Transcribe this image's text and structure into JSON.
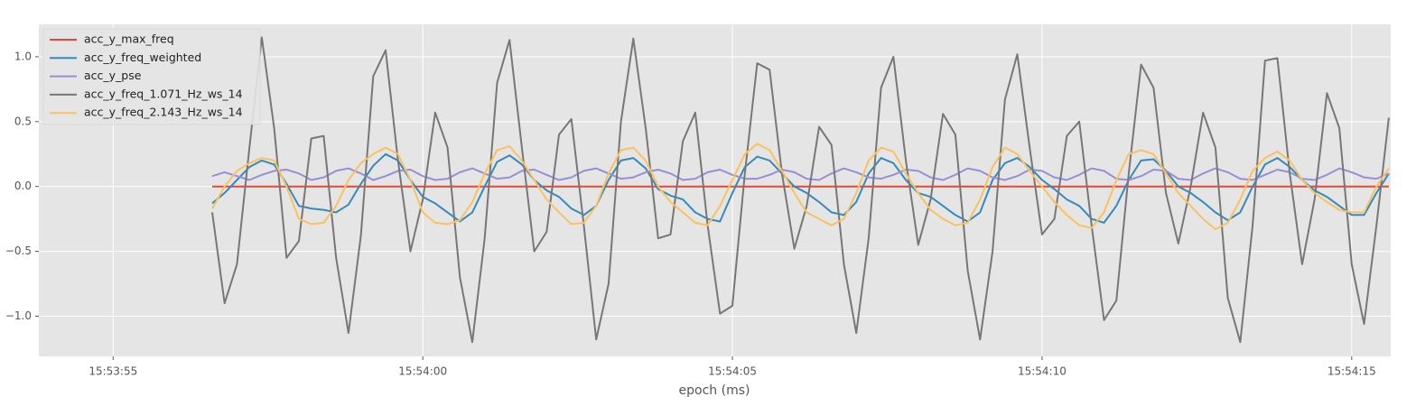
{
  "chart_data": {
    "type": "line",
    "xlabel": "epoch (ms)",
    "xlim": [
      -1.2,
      20.63
    ],
    "ylim": [
      -1.31,
      1.25
    ],
    "xticks": [
      {
        "value": 0,
        "label": "15:53:55"
      },
      {
        "value": 5,
        "label": "15:54:00"
      },
      {
        "value": 10,
        "label": "15:54:05"
      },
      {
        "value": 15,
        "label": "15:54:10"
      },
      {
        "value": 20,
        "label": "15:54:15"
      }
    ],
    "yticks": [
      {
        "value": -1.0,
        "label": "−1.0"
      },
      {
        "value": -0.5,
        "label": "−0.5"
      },
      {
        "value": 0.0,
        "label": "0.0"
      },
      {
        "value": 0.5,
        "label": "0.5"
      },
      {
        "value": 1.0,
        "label": "1.0"
      }
    ],
    "grid": true,
    "legend": "upper left",
    "x": [
      1.6,
      1.8,
      2.0,
      2.2,
      2.4,
      2.6,
      2.8,
      3.0,
      3.2,
      3.4,
      3.6,
      3.8,
      4.0,
      4.2,
      4.4,
      4.6,
      4.8,
      5.0,
      5.2,
      5.4,
      5.6,
      5.8,
      6.0,
      6.2,
      6.4,
      6.6,
      6.8,
      7.0,
      7.2,
      7.4,
      7.6,
      7.8,
      8.0,
      8.2,
      8.4,
      8.6,
      8.8,
      9.0,
      9.2,
      9.4,
      9.6,
      9.8,
      10.0,
      10.2,
      10.4,
      10.6,
      10.8,
      11.0,
      11.2,
      11.4,
      11.6,
      11.8,
      12.0,
      12.2,
      12.4,
      12.6,
      12.8,
      13.0,
      13.2,
      13.4,
      13.6,
      13.8,
      14.0,
      14.2,
      14.4,
      14.6,
      14.8,
      15.0,
      15.2,
      15.4,
      15.6,
      15.8,
      16.0,
      16.2,
      16.4,
      16.6,
      16.8,
      17.0,
      17.2,
      17.4,
      17.6,
      17.8,
      18.0,
      18.2,
      18.4,
      18.6,
      18.8,
      19.0,
      19.2,
      19.4,
      19.6,
      19.8,
      20.0,
      20.2,
      20.4,
      20.6
    ],
    "series": [
      {
        "name": "acc_y_max_freq",
        "color": "#e24a33",
        "values": [
          0,
          0,
          0,
          0,
          0,
          0,
          0,
          0,
          0,
          0,
          0,
          0,
          0,
          0,
          0,
          0,
          0,
          0,
          0,
          0,
          0,
          0,
          0,
          0,
          0,
          0,
          0,
          0,
          0,
          0,
          0,
          0,
          0,
          0,
          0,
          0,
          0,
          0,
          0,
          0,
          0,
          0,
          0,
          0,
          0,
          0,
          0,
          0,
          0,
          0,
          0,
          0,
          0,
          0,
          0,
          0,
          0,
          0,
          0,
          0,
          0,
          0,
          0,
          0,
          0,
          0,
          0,
          0,
          0,
          0,
          0,
          0,
          0,
          0,
          0,
          0,
          0,
          0,
          0,
          0,
          0,
          0,
          0,
          0,
          0,
          0,
          0,
          0,
          0,
          0,
          0,
          0,
          0,
          0,
          0,
          0
        ]
      },
      {
        "name": "acc_y_freq_weighted",
        "color": "#348abd",
        "values": [
          -0.13,
          -0.05,
          0.05,
          0.15,
          0.2,
          0.17,
          0.02,
          -0.15,
          -0.17,
          -0.18,
          -0.2,
          -0.14,
          0.02,
          0.16,
          0.25,
          0.2,
          0.05,
          -0.08,
          -0.13,
          -0.2,
          -0.27,
          -0.2,
          0.0,
          0.19,
          0.24,
          0.17,
          0.05,
          -0.03,
          -0.08,
          -0.17,
          -0.22,
          -0.15,
          0.05,
          0.2,
          0.22,
          0.14,
          -0.02,
          -0.07,
          -0.1,
          -0.2,
          -0.25,
          -0.27,
          -0.05,
          0.15,
          0.23,
          0.2,
          0.1,
          0.0,
          -0.05,
          -0.12,
          -0.2,
          -0.22,
          -0.12,
          0.1,
          0.22,
          0.18,
          0.05,
          -0.05,
          -0.08,
          -0.15,
          -0.22,
          -0.27,
          -0.2,
          0.05,
          0.18,
          0.22,
          0.15,
          0.05,
          -0.02,
          -0.1,
          -0.15,
          -0.25,
          -0.28,
          -0.15,
          0.05,
          0.2,
          0.21,
          0.12,
          0.0,
          -0.05,
          -0.12,
          -0.2,
          -0.26,
          -0.2,
          0.0,
          0.17,
          0.22,
          0.15,
          0.05,
          -0.03,
          -0.08,
          -0.15,
          -0.22,
          -0.22,
          -0.05,
          0.1
        ]
      },
      {
        "name": "acc_y_pse",
        "color": "#988ed5",
        "values": [
          0.08,
          0.11,
          0.08,
          0.05,
          0.09,
          0.12,
          0.13,
          0.1,
          0.05,
          0.07,
          0.12,
          0.14,
          0.1,
          0.05,
          0.08,
          0.12,
          0.13,
          0.08,
          0.05,
          0.06,
          0.11,
          0.14,
          0.1,
          0.06,
          0.07,
          0.12,
          0.13,
          0.09,
          0.05,
          0.07,
          0.12,
          0.14,
          0.1,
          0.06,
          0.07,
          0.11,
          0.13,
          0.1,
          0.05,
          0.06,
          0.11,
          0.13,
          0.09,
          0.06,
          0.06,
          0.09,
          0.13,
          0.11,
          0.06,
          0.05,
          0.1,
          0.14,
          0.11,
          0.07,
          0.06,
          0.09,
          0.13,
          0.12,
          0.07,
          0.05,
          0.09,
          0.14,
          0.12,
          0.07,
          0.05,
          0.08,
          0.13,
          0.12,
          0.07,
          0.05,
          0.09,
          0.14,
          0.12,
          0.06,
          0.05,
          0.08,
          0.13,
          0.12,
          0.06,
          0.05,
          0.1,
          0.14,
          0.11,
          0.06,
          0.05,
          0.09,
          0.13,
          0.11,
          0.06,
          0.05,
          0.09,
          0.14,
          0.11,
          0.07,
          0.06,
          0.1
        ]
      },
      {
        "name": "acc_y_freq_1.071_Hz_ws_14",
        "color": "#777777",
        "values": [
          -0.2,
          -0.9,
          -0.6,
          0.3,
          1.15,
          0.45,
          -0.55,
          -0.42,
          0.37,
          0.39,
          -0.55,
          -1.13,
          -0.38,
          0.85,
          1.05,
          0.2,
          -0.5,
          -0.1,
          0.57,
          0.3,
          -0.7,
          -1.2,
          -0.4,
          0.8,
          1.13,
          0.3,
          -0.5,
          -0.35,
          0.4,
          0.52,
          -0.3,
          -1.18,
          -0.75,
          0.5,
          1.14,
          0.45,
          -0.4,
          -0.37,
          0.35,
          0.57,
          -0.3,
          -0.98,
          -0.92,
          0.1,
          0.95,
          0.9,
          0.1,
          -0.48,
          -0.15,
          0.46,
          0.32,
          -0.6,
          -1.13,
          -0.4,
          0.76,
          1.0,
          0.2,
          -0.45,
          -0.1,
          0.56,
          0.4,
          -0.65,
          -1.18,
          -0.5,
          0.67,
          1.02,
          0.3,
          -0.37,
          -0.25,
          0.39,
          0.5,
          -0.3,
          -1.03,
          -0.88,
          0.1,
          0.94,
          0.76,
          -0.05,
          -0.44,
          0.0,
          0.57,
          0.3,
          -0.86,
          -1.2,
          -0.3,
          0.97,
          0.99,
          0.1,
          -0.6,
          -0.1,
          0.72,
          0.45,
          -0.6,
          -1.06,
          -0.3,
          0.53
        ]
      },
      {
        "name": "acc_y_freq_2.143_Hz_ws_14",
        "color": "#fbc15e",
        "values": [
          -0.17,
          0.0,
          0.12,
          0.18,
          0.22,
          0.2,
          0.0,
          -0.25,
          -0.29,
          -0.28,
          -0.15,
          0.05,
          0.18,
          0.25,
          0.3,
          0.25,
          0.05,
          -0.2,
          -0.28,
          -0.29,
          -0.26,
          -0.12,
          0.1,
          0.28,
          0.31,
          0.2,
          0.05,
          -0.1,
          -0.2,
          -0.29,
          -0.28,
          -0.15,
          0.1,
          0.28,
          0.3,
          0.2,
          0.0,
          -0.12,
          -0.2,
          -0.28,
          -0.3,
          -0.15,
          0.05,
          0.25,
          0.33,
          0.28,
          0.12,
          -0.05,
          -0.2,
          -0.25,
          -0.3,
          -0.25,
          -0.05,
          0.2,
          0.3,
          0.27,
          0.1,
          -0.05,
          -0.18,
          -0.25,
          -0.3,
          -0.28,
          -0.1,
          0.15,
          0.3,
          0.25,
          0.12,
          0.0,
          -0.12,
          -0.22,
          -0.3,
          -0.32,
          -0.2,
          0.05,
          0.25,
          0.28,
          0.25,
          0.1,
          -0.05,
          -0.15,
          -0.25,
          -0.33,
          -0.28,
          -0.1,
          0.12,
          0.22,
          0.27,
          0.2,
          0.05,
          -0.05,
          -0.12,
          -0.18,
          -0.2,
          -0.2,
          0.0,
          0.14
        ]
      }
    ]
  }
}
